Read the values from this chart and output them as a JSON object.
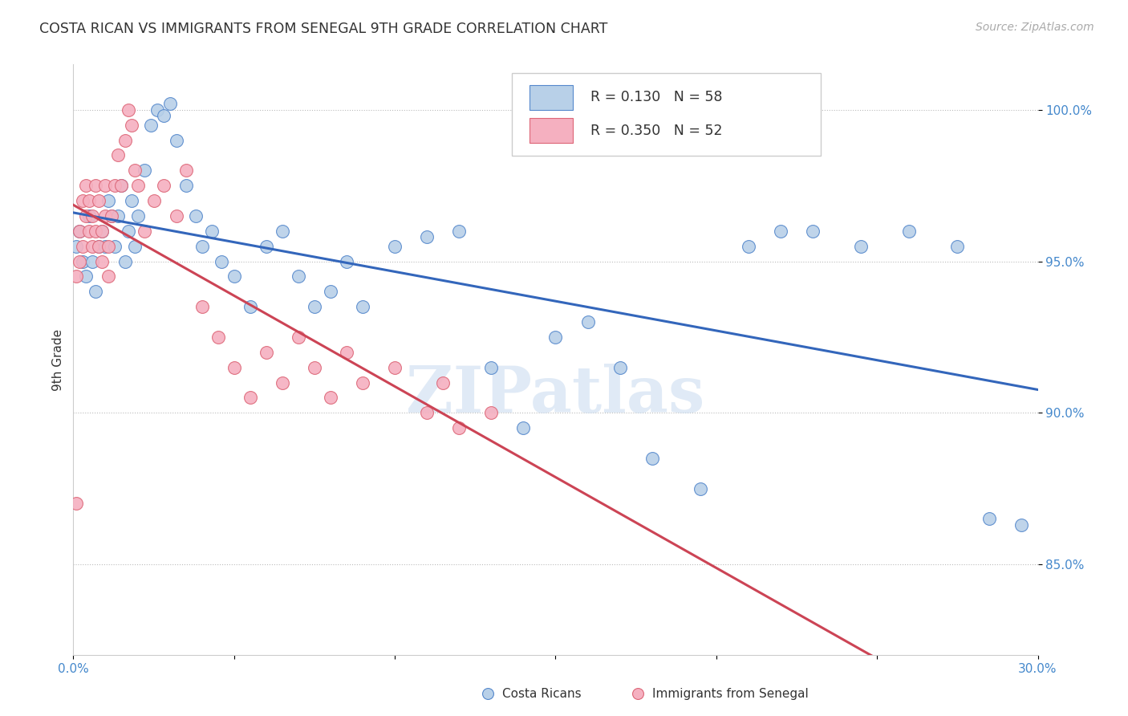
{
  "title": "COSTA RICAN VS IMMIGRANTS FROM SENEGAL 9TH GRADE CORRELATION CHART",
  "source": "Source: ZipAtlas.com",
  "ylabel": "9th Grade",
  "ytick_labels": [
    "85.0%",
    "90.0%",
    "95.0%",
    "100.0%"
  ],
  "ytick_positions": [
    85.0,
    90.0,
    95.0,
    100.0
  ],
  "xmin": 0.0,
  "xmax": 0.3,
  "ymin": 82.0,
  "ymax": 101.5,
  "blue_R": 0.13,
  "blue_N": 58,
  "pink_R": 0.35,
  "pink_N": 52,
  "blue_color": "#b8d0e8",
  "pink_color": "#f5b0c0",
  "blue_edge_color": "#5588cc",
  "pink_edge_color": "#dd6677",
  "blue_line_color": "#3366bb",
  "pink_line_color": "#cc4455",
  "watermark": "ZIPatlas",
  "blue_x": [
    0.001,
    0.002,
    0.003,
    0.004,
    0.005,
    0.006,
    0.007,
    0.008,
    0.009,
    0.01,
    0.011,
    0.012,
    0.013,
    0.014,
    0.015,
    0.016,
    0.017,
    0.018,
    0.019,
    0.02,
    0.022,
    0.024,
    0.026,
    0.028,
    0.03,
    0.032,
    0.035,
    0.038,
    0.04,
    0.043,
    0.046,
    0.05,
    0.055,
    0.06,
    0.065,
    0.07,
    0.075,
    0.08,
    0.085,
    0.09,
    0.1,
    0.11,
    0.12,
    0.13,
    0.14,
    0.15,
    0.16,
    0.17,
    0.18,
    0.195,
    0.21,
    0.22,
    0.23,
    0.245,
    0.26,
    0.275,
    0.285,
    0.295
  ],
  "blue_y": [
    95.5,
    96.0,
    95.0,
    94.5,
    96.5,
    95.0,
    94.0,
    95.5,
    96.0,
    95.5,
    97.0,
    96.5,
    95.5,
    96.5,
    97.5,
    95.0,
    96.0,
    97.0,
    95.5,
    96.5,
    98.0,
    99.5,
    100.0,
    99.8,
    100.2,
    99.0,
    97.5,
    96.5,
    95.5,
    96.0,
    95.0,
    94.5,
    93.5,
    95.5,
    96.0,
    94.5,
    93.5,
    94.0,
    95.0,
    93.5,
    95.5,
    95.8,
    96.0,
    91.5,
    89.5,
    92.5,
    93.0,
    91.5,
    88.5,
    87.5,
    95.5,
    96.0,
    96.0,
    95.5,
    96.0,
    95.5,
    86.5,
    86.3
  ],
  "pink_x": [
    0.001,
    0.002,
    0.002,
    0.003,
    0.003,
    0.004,
    0.004,
    0.005,
    0.005,
    0.006,
    0.006,
    0.007,
    0.007,
    0.008,
    0.008,
    0.009,
    0.009,
    0.01,
    0.01,
    0.011,
    0.011,
    0.012,
    0.013,
    0.014,
    0.015,
    0.016,
    0.017,
    0.018,
    0.019,
    0.02,
    0.022,
    0.025,
    0.028,
    0.032,
    0.035,
    0.04,
    0.045,
    0.05,
    0.055,
    0.06,
    0.065,
    0.07,
    0.075,
    0.08,
    0.085,
    0.09,
    0.1,
    0.11,
    0.115,
    0.12,
    0.13,
    0.001
  ],
  "pink_y": [
    94.5,
    95.0,
    96.0,
    97.0,
    95.5,
    96.5,
    97.5,
    96.0,
    97.0,
    95.5,
    96.5,
    96.0,
    97.5,
    95.5,
    97.0,
    96.0,
    95.0,
    97.5,
    96.5,
    95.5,
    94.5,
    96.5,
    97.5,
    98.5,
    97.5,
    99.0,
    100.0,
    99.5,
    98.0,
    97.5,
    96.0,
    97.0,
    97.5,
    96.5,
    98.0,
    93.5,
    92.5,
    91.5,
    90.5,
    92.0,
    91.0,
    92.5,
    91.5,
    90.5,
    92.0,
    91.0,
    91.5,
    90.0,
    91.0,
    89.5,
    90.0,
    87.0
  ]
}
